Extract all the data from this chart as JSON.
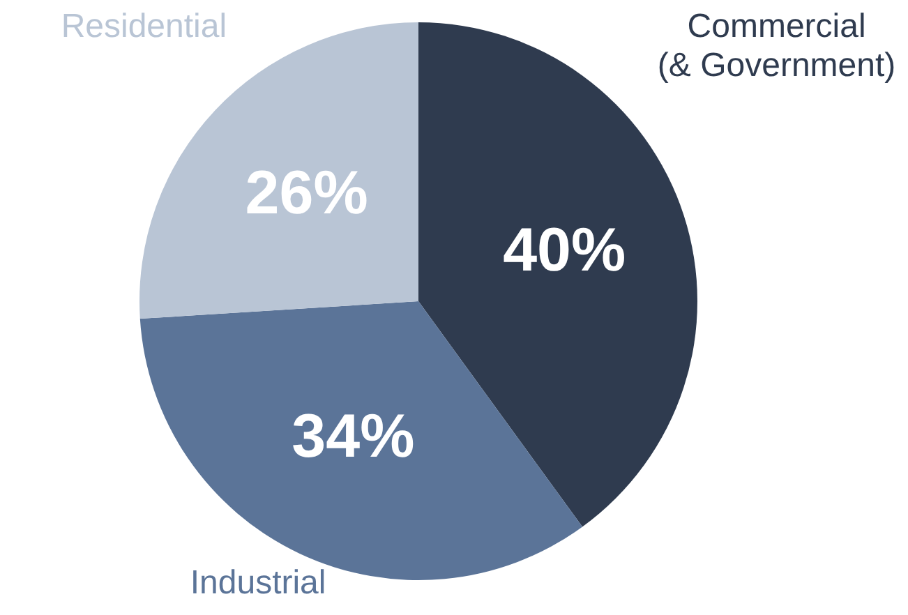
{
  "chart_data": {
    "type": "pie",
    "categories": [
      "Commercial\n(& Government)",
      "Industrial",
      "Residential"
    ],
    "values": [
      40,
      34,
      26
    ],
    "colors": [
      "#2f3b4f",
      "#5b7498",
      "#b9c5d5"
    ],
    "value_labels": [
      "40%",
      "34%",
      "26%"
    ],
    "legend": false
  }
}
